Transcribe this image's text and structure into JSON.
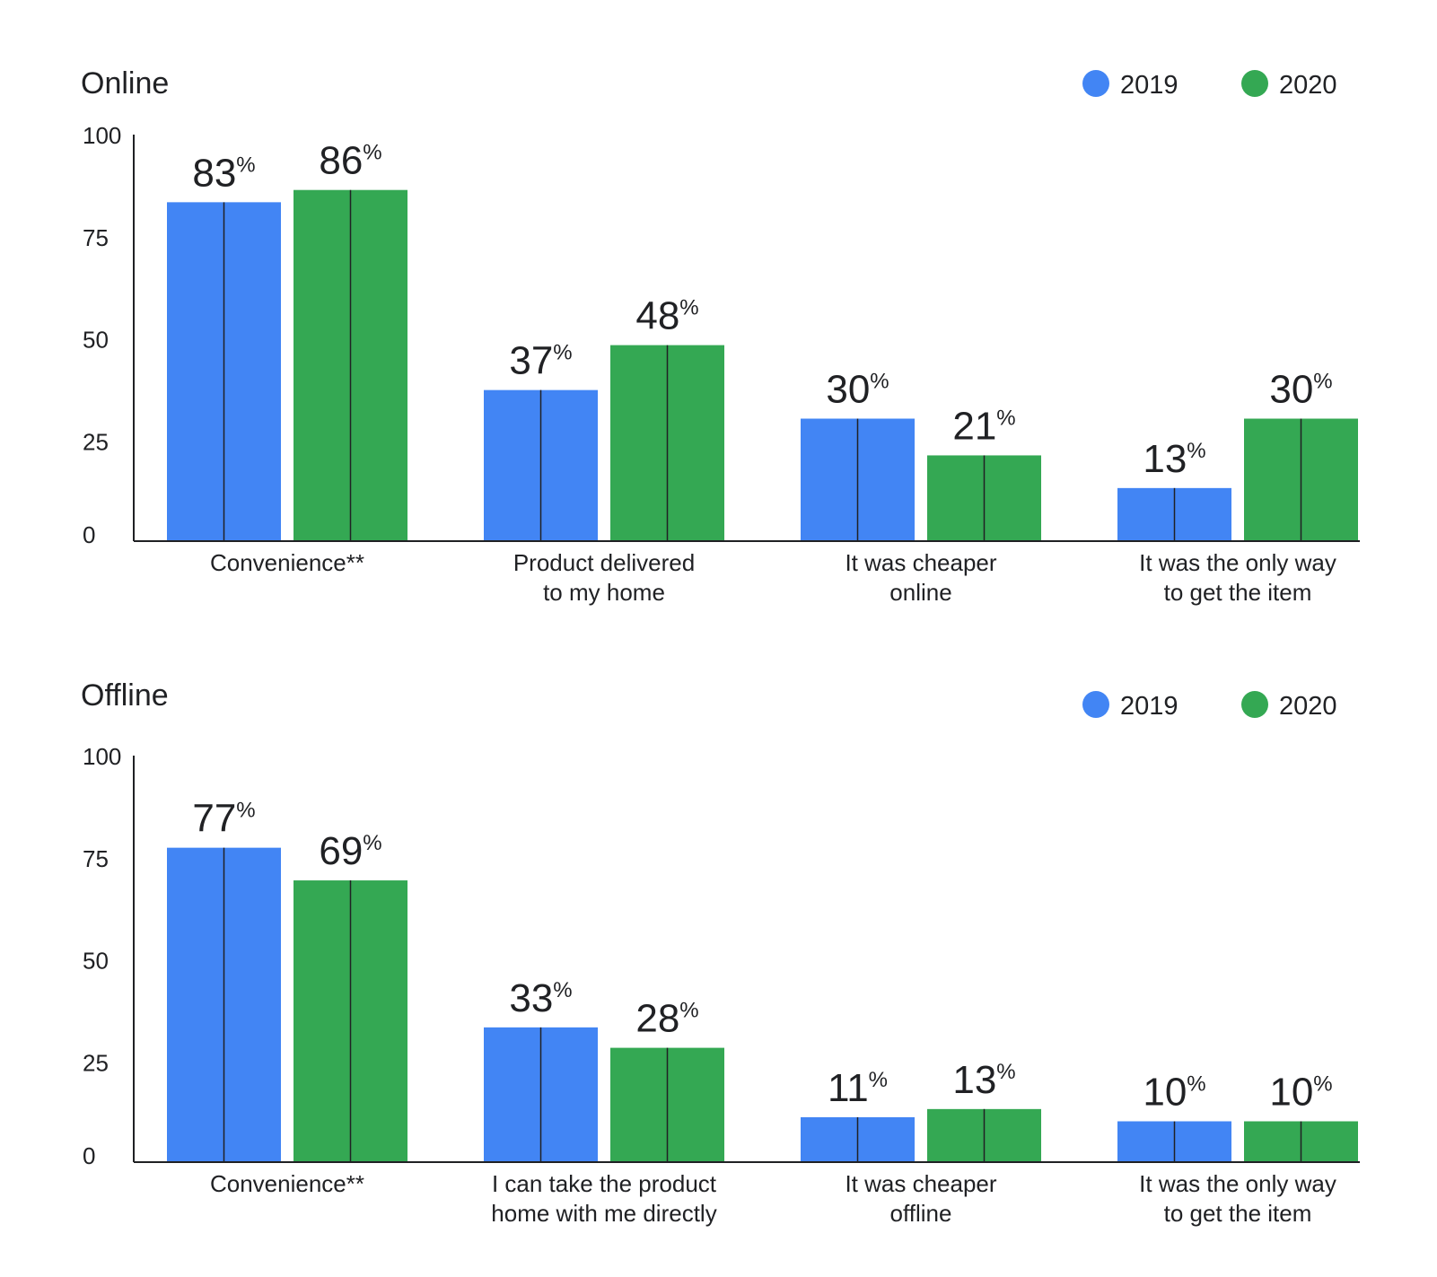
{
  "colors": {
    "2019": "#4285F4",
    "2020": "#34A853",
    "axis": "#202124",
    "text": "#202124"
  },
  "chart_data": [
    {
      "type": "bar",
      "title": "Online",
      "xlabel": "",
      "ylabel": "",
      "ylim": [
        0,
        100
      ],
      "yticks": [
        "100",
        "75",
        "50",
        "25",
        "0"
      ],
      "legend_position": "top-right",
      "unit": "%",
      "categories": [
        [
          "Convenience**"
        ],
        [
          "Product delivered",
          "to my home"
        ],
        [
          "It was cheaper",
          "online"
        ],
        [
          "It was the only way",
          "to get the item"
        ]
      ],
      "series": [
        {
          "name": "2019",
          "values": [
            83,
            37,
            30,
            13
          ],
          "labels": [
            "83",
            "37",
            "30",
            "13"
          ]
        },
        {
          "name": "2020",
          "values": [
            86,
            48,
            21,
            30
          ],
          "labels": [
            "86",
            "48",
            "21",
            "30"
          ]
        }
      ]
    },
    {
      "type": "bar",
      "title": "Offline",
      "xlabel": "",
      "ylabel": "",
      "ylim": [
        0,
        100
      ],
      "yticks": [
        "100",
        "75",
        "50",
        "25",
        "0"
      ],
      "legend_position": "top-right",
      "unit": "%",
      "categories": [
        [
          "Convenience**"
        ],
        [
          "I can take the product",
          "home with me directly"
        ],
        [
          "It was cheaper",
          "offline"
        ],
        [
          "It was the only way",
          "to get the item"
        ]
      ],
      "series": [
        {
          "name": "2019",
          "values": [
            77,
            33,
            11,
            10
          ],
          "labels": [
            "77",
            "33",
            "11",
            "10"
          ]
        },
        {
          "name": "2020",
          "values": [
            69,
            28,
            13,
            10
          ],
          "labels": [
            "69",
            "28",
            "13",
            "10"
          ]
        }
      ]
    }
  ]
}
